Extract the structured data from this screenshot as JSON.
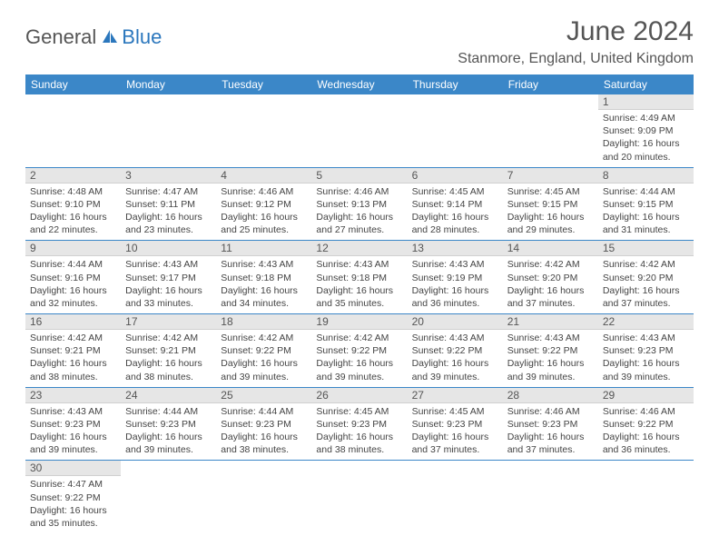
{
  "brand": {
    "part1": "General",
    "part2": "Blue"
  },
  "title": {
    "month_year": "June 2024",
    "location": "Stanmore, England, United Kingdom"
  },
  "colors": {
    "header_bg": "#3b87c8",
    "header_text": "#ffffff",
    "daynum_bg": "#e6e6e6",
    "border": "#3b87c8",
    "brand_accent": "#2b77bd",
    "text": "#444444"
  },
  "weekdays": [
    "Sunday",
    "Monday",
    "Tuesday",
    "Wednesday",
    "Thursday",
    "Friday",
    "Saturday"
  ],
  "first_weekday_index": 6,
  "days": [
    {
      "n": 1,
      "sunrise": "4:49 AM",
      "sunset": "9:09 PM",
      "dl_h": 16,
      "dl_m": 20
    },
    {
      "n": 2,
      "sunrise": "4:48 AM",
      "sunset": "9:10 PM",
      "dl_h": 16,
      "dl_m": 22
    },
    {
      "n": 3,
      "sunrise": "4:47 AM",
      "sunset": "9:11 PM",
      "dl_h": 16,
      "dl_m": 23
    },
    {
      "n": 4,
      "sunrise": "4:46 AM",
      "sunset": "9:12 PM",
      "dl_h": 16,
      "dl_m": 25
    },
    {
      "n": 5,
      "sunrise": "4:46 AM",
      "sunset": "9:13 PM",
      "dl_h": 16,
      "dl_m": 27
    },
    {
      "n": 6,
      "sunrise": "4:45 AM",
      "sunset": "9:14 PM",
      "dl_h": 16,
      "dl_m": 28
    },
    {
      "n": 7,
      "sunrise": "4:45 AM",
      "sunset": "9:15 PM",
      "dl_h": 16,
      "dl_m": 29
    },
    {
      "n": 8,
      "sunrise": "4:44 AM",
      "sunset": "9:15 PM",
      "dl_h": 16,
      "dl_m": 31
    },
    {
      "n": 9,
      "sunrise": "4:44 AM",
      "sunset": "9:16 PM",
      "dl_h": 16,
      "dl_m": 32
    },
    {
      "n": 10,
      "sunrise": "4:43 AM",
      "sunset": "9:17 PM",
      "dl_h": 16,
      "dl_m": 33
    },
    {
      "n": 11,
      "sunrise": "4:43 AM",
      "sunset": "9:18 PM",
      "dl_h": 16,
      "dl_m": 34
    },
    {
      "n": 12,
      "sunrise": "4:43 AM",
      "sunset": "9:18 PM",
      "dl_h": 16,
      "dl_m": 35
    },
    {
      "n": 13,
      "sunrise": "4:43 AM",
      "sunset": "9:19 PM",
      "dl_h": 16,
      "dl_m": 36
    },
    {
      "n": 14,
      "sunrise": "4:42 AM",
      "sunset": "9:20 PM",
      "dl_h": 16,
      "dl_m": 37
    },
    {
      "n": 15,
      "sunrise": "4:42 AM",
      "sunset": "9:20 PM",
      "dl_h": 16,
      "dl_m": 37
    },
    {
      "n": 16,
      "sunrise": "4:42 AM",
      "sunset": "9:21 PM",
      "dl_h": 16,
      "dl_m": 38
    },
    {
      "n": 17,
      "sunrise": "4:42 AM",
      "sunset": "9:21 PM",
      "dl_h": 16,
      "dl_m": 38
    },
    {
      "n": 18,
      "sunrise": "4:42 AM",
      "sunset": "9:22 PM",
      "dl_h": 16,
      "dl_m": 39
    },
    {
      "n": 19,
      "sunrise": "4:42 AM",
      "sunset": "9:22 PM",
      "dl_h": 16,
      "dl_m": 39
    },
    {
      "n": 20,
      "sunrise": "4:43 AM",
      "sunset": "9:22 PM",
      "dl_h": 16,
      "dl_m": 39
    },
    {
      "n": 21,
      "sunrise": "4:43 AM",
      "sunset": "9:22 PM",
      "dl_h": 16,
      "dl_m": 39
    },
    {
      "n": 22,
      "sunrise": "4:43 AM",
      "sunset": "9:23 PM",
      "dl_h": 16,
      "dl_m": 39
    },
    {
      "n": 23,
      "sunrise": "4:43 AM",
      "sunset": "9:23 PM",
      "dl_h": 16,
      "dl_m": 39
    },
    {
      "n": 24,
      "sunrise": "4:44 AM",
      "sunset": "9:23 PM",
      "dl_h": 16,
      "dl_m": 39
    },
    {
      "n": 25,
      "sunrise": "4:44 AM",
      "sunset": "9:23 PM",
      "dl_h": 16,
      "dl_m": 38
    },
    {
      "n": 26,
      "sunrise": "4:45 AM",
      "sunset": "9:23 PM",
      "dl_h": 16,
      "dl_m": 38
    },
    {
      "n": 27,
      "sunrise": "4:45 AM",
      "sunset": "9:23 PM",
      "dl_h": 16,
      "dl_m": 37
    },
    {
      "n": 28,
      "sunrise": "4:46 AM",
      "sunset": "9:23 PM",
      "dl_h": 16,
      "dl_m": 37
    },
    {
      "n": 29,
      "sunrise": "4:46 AM",
      "sunset": "9:22 PM",
      "dl_h": 16,
      "dl_m": 36
    },
    {
      "n": 30,
      "sunrise": "4:47 AM",
      "sunset": "9:22 PM",
      "dl_h": 16,
      "dl_m": 35
    }
  ],
  "labels": {
    "sunrise": "Sunrise:",
    "sunset": "Sunset:",
    "daylight": "Daylight:",
    "hours": "hours",
    "and": "and",
    "minutes": "minutes."
  }
}
